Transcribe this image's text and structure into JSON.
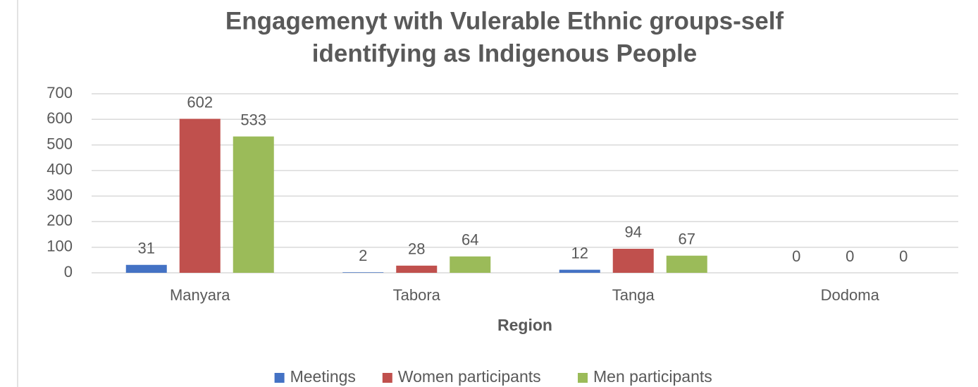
{
  "chart_data": {
    "type": "bar",
    "title": [
      "Engagemenyt with Vulerable Ethnic groups-self",
      "identifying as Indigenous People"
    ],
    "x_label": "Region",
    "categories": [
      "Manyara",
      "Tabora",
      "Tanga",
      "Dodoma"
    ],
    "series": [
      {
        "name": "Meetings",
        "color": "#4472c4",
        "values": [
          31,
          2,
          12,
          0
        ]
      },
      {
        "name": "Women participants",
        "color": "#c0504d",
        "values": [
          602,
          28,
          94,
          0
        ]
      },
      {
        "name": "Men participants",
        "color": "#9bbb59",
        "values": [
          533,
          64,
          67,
          0
        ]
      }
    ],
    "ylim": [
      0,
      700
    ],
    "yticks": [
      0,
      100,
      200,
      300,
      400,
      500,
      600,
      700
    ],
    "grid": true,
    "legend": "bottom"
  }
}
